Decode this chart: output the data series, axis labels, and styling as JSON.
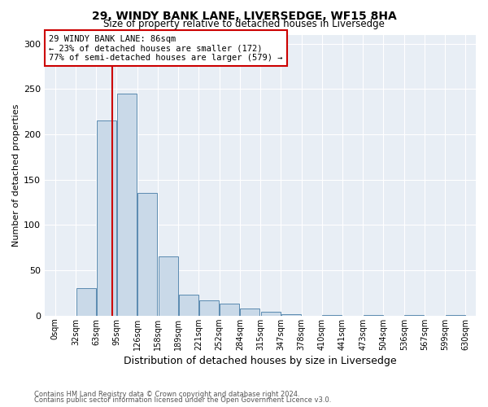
{
  "title1": "29, WINDY BANK LANE, LIVERSEDGE, WF15 8HA",
  "title2": "Size of property relative to detached houses in Liversedge",
  "xlabel": "Distribution of detached houses by size in Liversedge",
  "ylabel": "Number of detached properties",
  "bar_color": "#c9d9e8",
  "bar_edge_color": "#5a8ab0",
  "bins": [
    "0sqm",
    "32sqm",
    "63sqm",
    "95sqm",
    "126sqm",
    "158sqm",
    "189sqm",
    "221sqm",
    "252sqm",
    "284sqm",
    "315sqm",
    "347sqm",
    "378sqm",
    "410sqm",
    "441sqm",
    "473sqm",
    "504sqm",
    "536sqm",
    "567sqm",
    "599sqm",
    "630sqm"
  ],
  "values": [
    0,
    30,
    215,
    245,
    135,
    65,
    23,
    17,
    13,
    8,
    4,
    2,
    0,
    1,
    0,
    1,
    0,
    1,
    0,
    1
  ],
  "vline_x_bin": 2.72,
  "annotation_line1": "29 WINDY BANK LANE: 86sqm",
  "annotation_line2": "← 23% of detached houses are smaller (172)",
  "annotation_line3": "77% of semi-detached houses are larger (579) →",
  "annotation_box_color": "#ffffff",
  "annotation_box_edge": "#cc0000",
  "vline_color": "#cc0000",
  "ylim": [
    0,
    310
  ],
  "yticks": [
    0,
    50,
    100,
    150,
    200,
    250,
    300
  ],
  "background_color": "#e8eef5",
  "footer1": "Contains HM Land Registry data © Crown copyright and database right 2024.",
  "footer2": "Contains public sector information licensed under the Open Government Licence v3.0.",
  "bin_width": 31,
  "n_bins": 20
}
